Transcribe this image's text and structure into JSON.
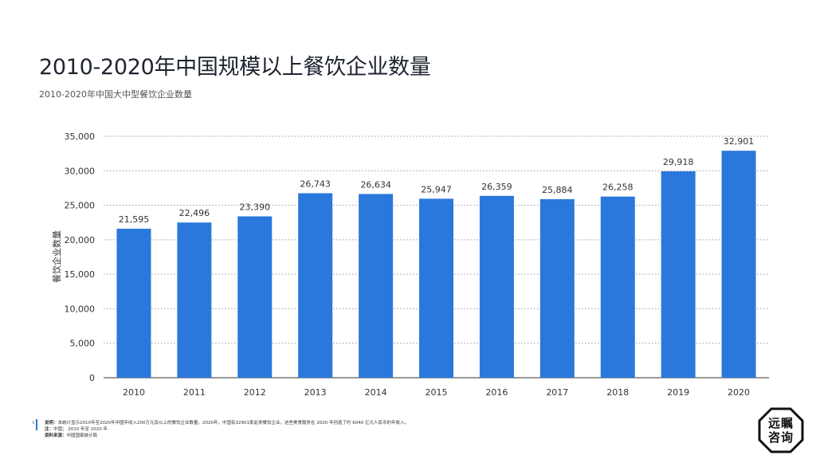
{
  "header": {
    "title": "2010-2020年中国规模以上餐饮企业数量",
    "subtitle": "2010-2020年中国大中型餐饮企业数量"
  },
  "chart_data": {
    "type": "bar",
    "categories": [
      "2010",
      "2011",
      "2012",
      "2013",
      "2014",
      "2015",
      "2016",
      "2017",
      "2018",
      "2019",
      "2020"
    ],
    "values": [
      21595,
      22496,
      23390,
      26743,
      26634,
      25947,
      26359,
      25884,
      26258,
      29918,
      32901
    ],
    "value_labels": [
      "21,595",
      "22,496",
      "23,390",
      "26,743",
      "26,634",
      "25,947",
      "26,359",
      "25,884",
      "26,258",
      "29,918",
      "32,901"
    ],
    "ylabel": "餐饮企业数量",
    "xlabel": "",
    "ylim": [
      0,
      35000
    ],
    "yticks": [
      0,
      5000,
      10000,
      15000,
      20000,
      25000,
      30000,
      35000
    ],
    "ytick_labels": [
      "0",
      "5,000",
      "10,000",
      "15,000",
      "20,000",
      "25,000",
      "30,000",
      "35,000"
    ],
    "grid": "horizontal dotted",
    "bar_color": "#2a78dc"
  },
  "footer": {
    "page_number": "3",
    "note_label": "说明：",
    "note_text": "本统计显示2010年至2020年中国年收入200万元及以上的餐饮企业数量。2020年，中国有32901家此类餐饮企业。这些美食服务在 2020 年创造了约 6040 亿元人民币的年收入。",
    "remark_label": "注：",
    "remark_text": "中国； 2010 年至 2020 年",
    "source_label": "资料来源：",
    "source_text": "中国国家统计局"
  },
  "logo": {
    "line1": "远瞩",
    "line2": "咨询"
  }
}
